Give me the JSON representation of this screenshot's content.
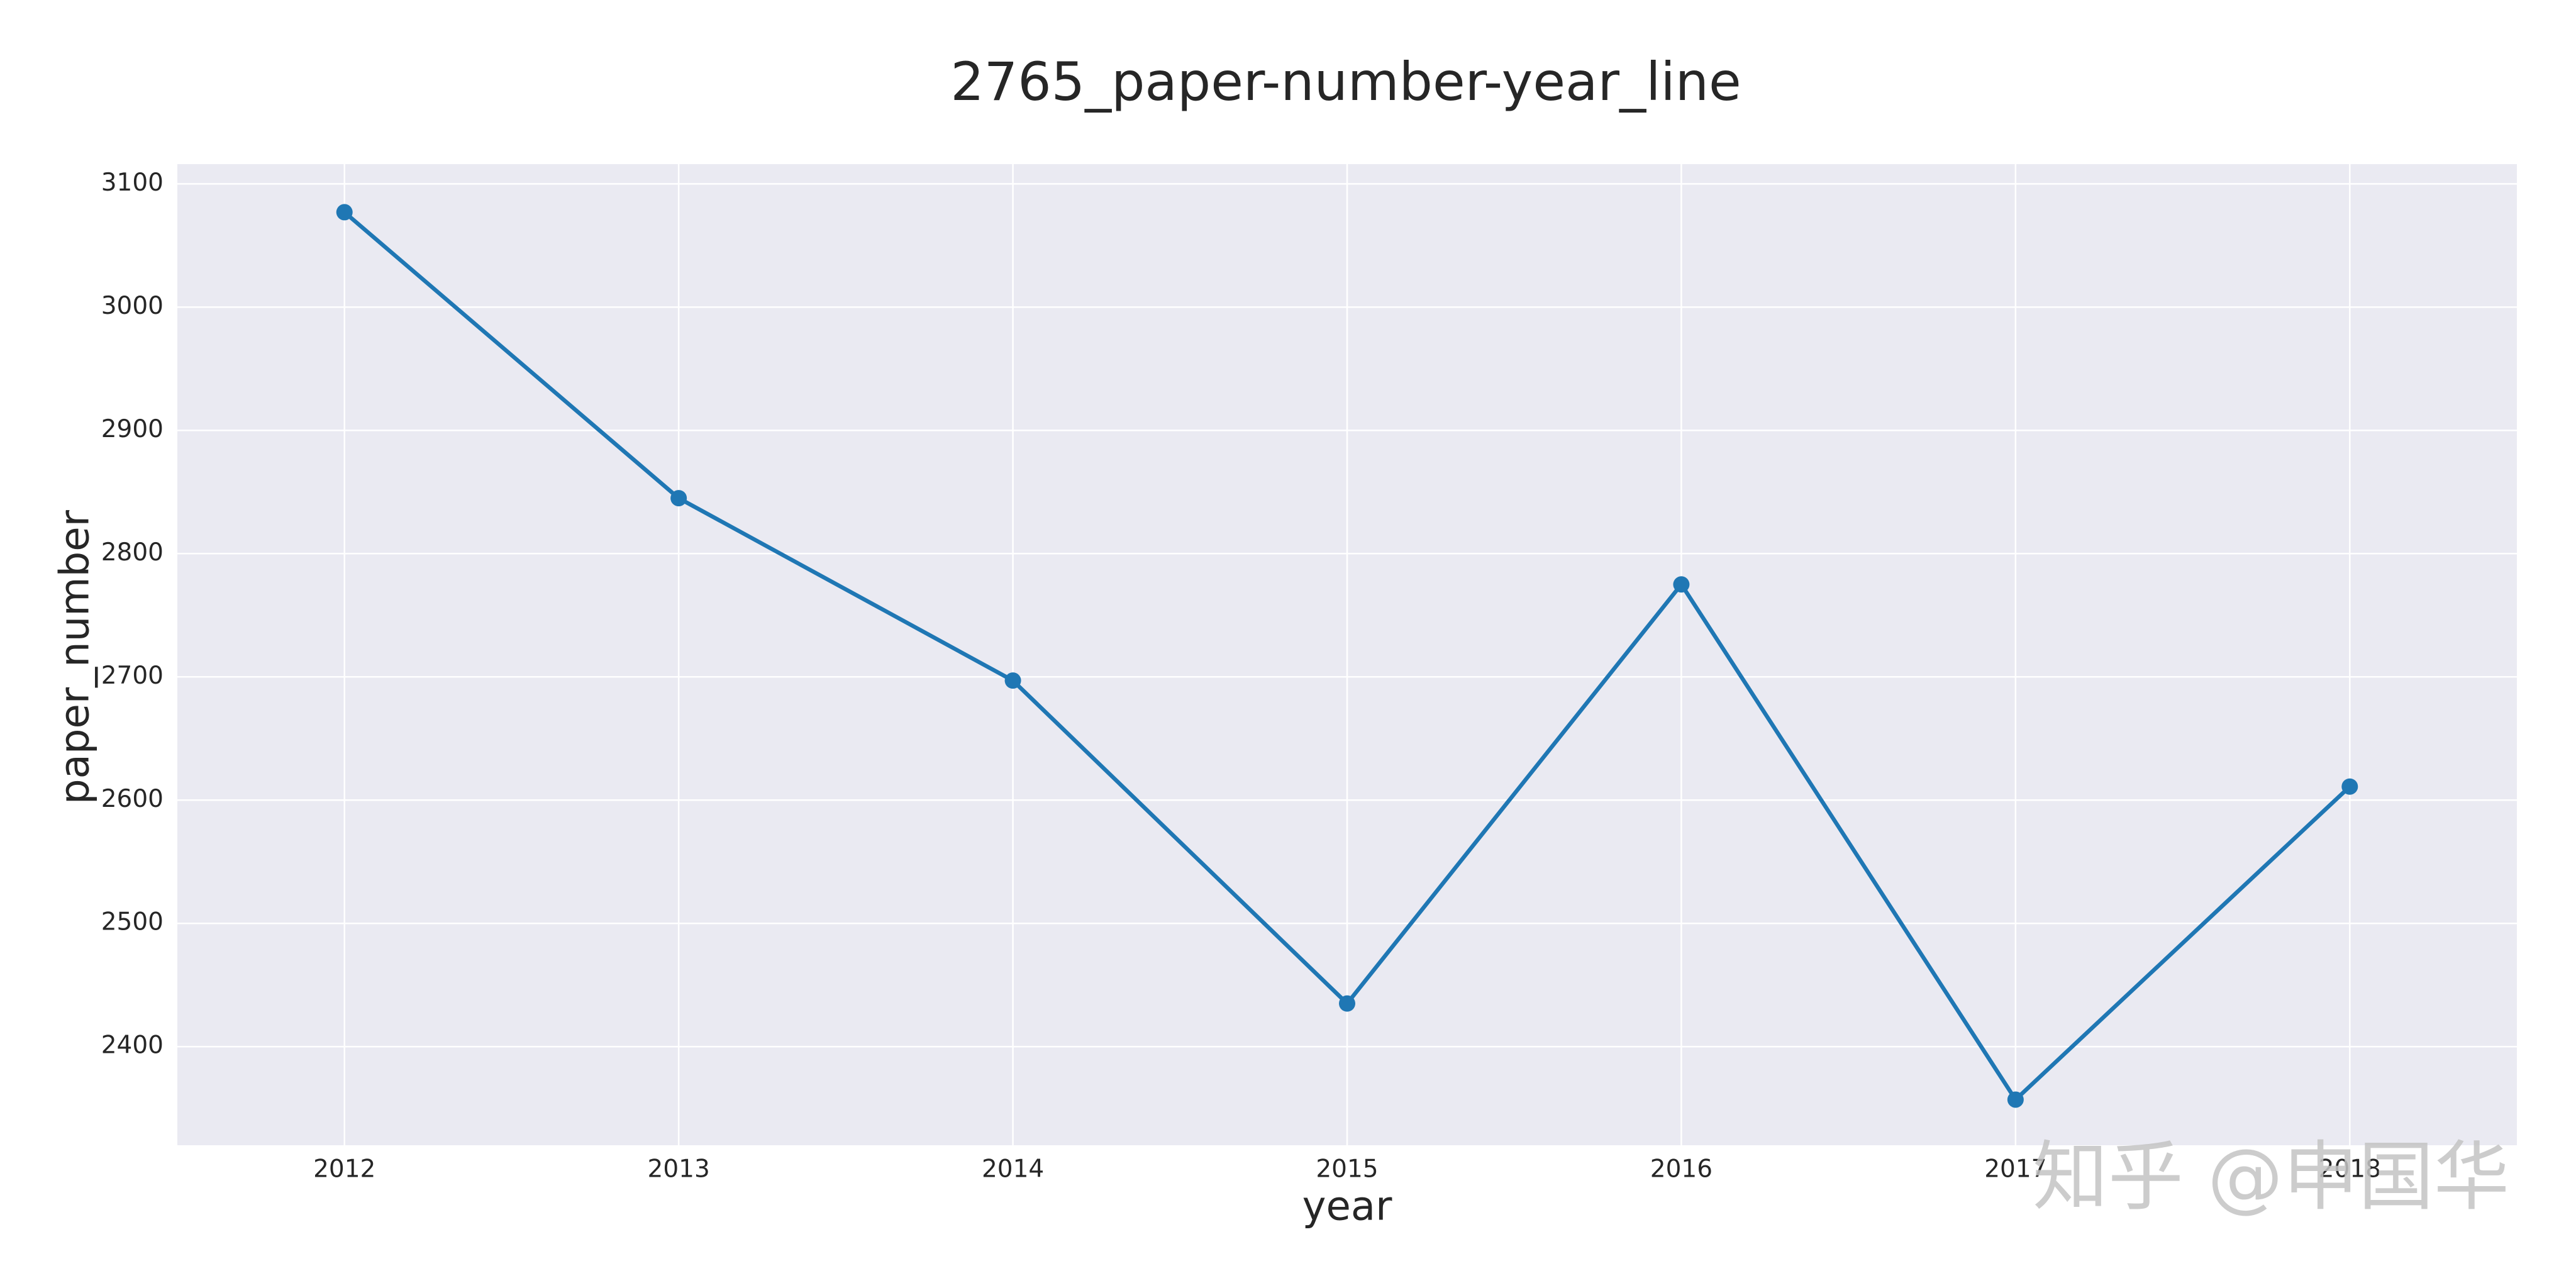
{
  "chart_data": {
    "type": "line",
    "title": "2765_paper-number-year_line",
    "x_label": "year",
    "y_label": "paper_number",
    "x": [
      2012,
      2013,
      2014,
      2015,
      2016,
      2017,
      2018
    ],
    "xlim": [
      2011.5,
      2018.5
    ],
    "xticks": [
      2012,
      2013,
      2014,
      2015,
      2016,
      2017,
      2018
    ],
    "ylim": [
      2320,
      3116
    ],
    "yticks": [
      2400,
      2500,
      2600,
      2700,
      2800,
      2900,
      3000,
      3100
    ],
    "grid": true,
    "series": [
      {
        "name": "paper_number",
        "color": "#1f77b4",
        "values": [
          3077,
          2845,
          2697,
          2435,
          2775,
          2357,
          2611
        ]
      }
    ],
    "watermark": "知乎 @申国华"
  }
}
